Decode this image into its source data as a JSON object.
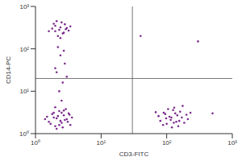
{
  "chart_data": {
    "type": "scatter",
    "x_label": "CD3-FITC",
    "y_label": "CD14-PC",
    "log": true,
    "grid": false,
    "marker": "dot",
    "color": "#7b2a8c",
    "xlim": [
      1,
      1000
    ],
    "xticks": [
      {
        "value": 1,
        "label": "10⁰"
      },
      {
        "value": 10,
        "label": "10¹"
      },
      {
        "value": 100,
        "label": "10²"
      },
      {
        "value": 1000,
        "label": "10³"
      }
    ],
    "ylim": [
      1,
      1000
    ],
    "yticks": [
      {
        "value": 1,
        "label": "10⁰"
      },
      {
        "value": 10,
        "label": "10¹"
      },
      {
        "value": 100,
        "label": "10²"
      },
      {
        "value": 1000,
        "label": "10³"
      }
    ],
    "gates": {
      "x": 30,
      "y": 20
    },
    "x": [
      2.1,
      2.5,
      1.8,
      3.0,
      2.3,
      1.6,
      2.7,
      3.4,
      2.0,
      2.9,
      1.5,
      2.4,
      3.2,
      1.9,
      2.6,
      2.2,
      3.6,
      1.7,
      2.8,
      2.0,
      2.5,
      3.1,
      1.4,
      2.3,
      2.7,
      1.9,
      3.3,
      2.1,
      110,
      140,
      90,
      170,
      125,
      80,
      200,
      150,
      100,
      130,
      75,
      160,
      115,
      95,
      185,
      120,
      145,
      105,
      210,
      88,
      135,
      175,
      68,
      155,
      118,
      230,
      98,
      128,
      2.3,
      2.0,
      2.7,
      1.8,
      2.5,
      3.0,
      2.2,
      2.8,
      1.6,
      2.4,
      3.2,
      2.1,
      2.6,
      1.9,
      2.9,
      2.4,
      2.0,
      3.4,
      2.3,
      2.6,
      2.1,
      2.8,
      2.4,
      2.2,
      2.5,
      2.0,
      3.0,
      2.7,
      40,
      300,
      500
    ],
    "values": [
      2.3,
      1.8,
      2.9,
      2.2,
      3.4,
      1.9,
      2.7,
      1.6,
      1.5,
      3.8,
      2.5,
      2.0,
      3.0,
      3.1,
      1.4,
      2.6,
      2.4,
      1.7,
      2.1,
      4.2,
      3.1,
      1.9,
      2.2,
      1.6,
      3.5,
      2.4,
      2.8,
      1.3,
      2.5,
      1.9,
      3.1,
      2.4,
      3.6,
      2.0,
      2.8,
      1.5,
      1.7,
      4.1,
      2.6,
      3.3,
      2.1,
      2.9,
      1.8,
      1.4,
      2.7,
      3.8,
      2.2,
      1.6,
      3.0,
      4.5,
      3.2,
      2.0,
      2.4,
      3.1,
      2.3,
      1.8,
      280,
      350,
      240,
      300,
      420,
      310,
      200,
      380,
      260,
      320,
      270,
      450,
      230,
      390,
      290,
      180,
      260,
      340,
      10,
      16,
      28,
      45,
      70,
      110,
      6,
      35,
      22,
      90,
      200,
      150,
      3
    ]
  }
}
